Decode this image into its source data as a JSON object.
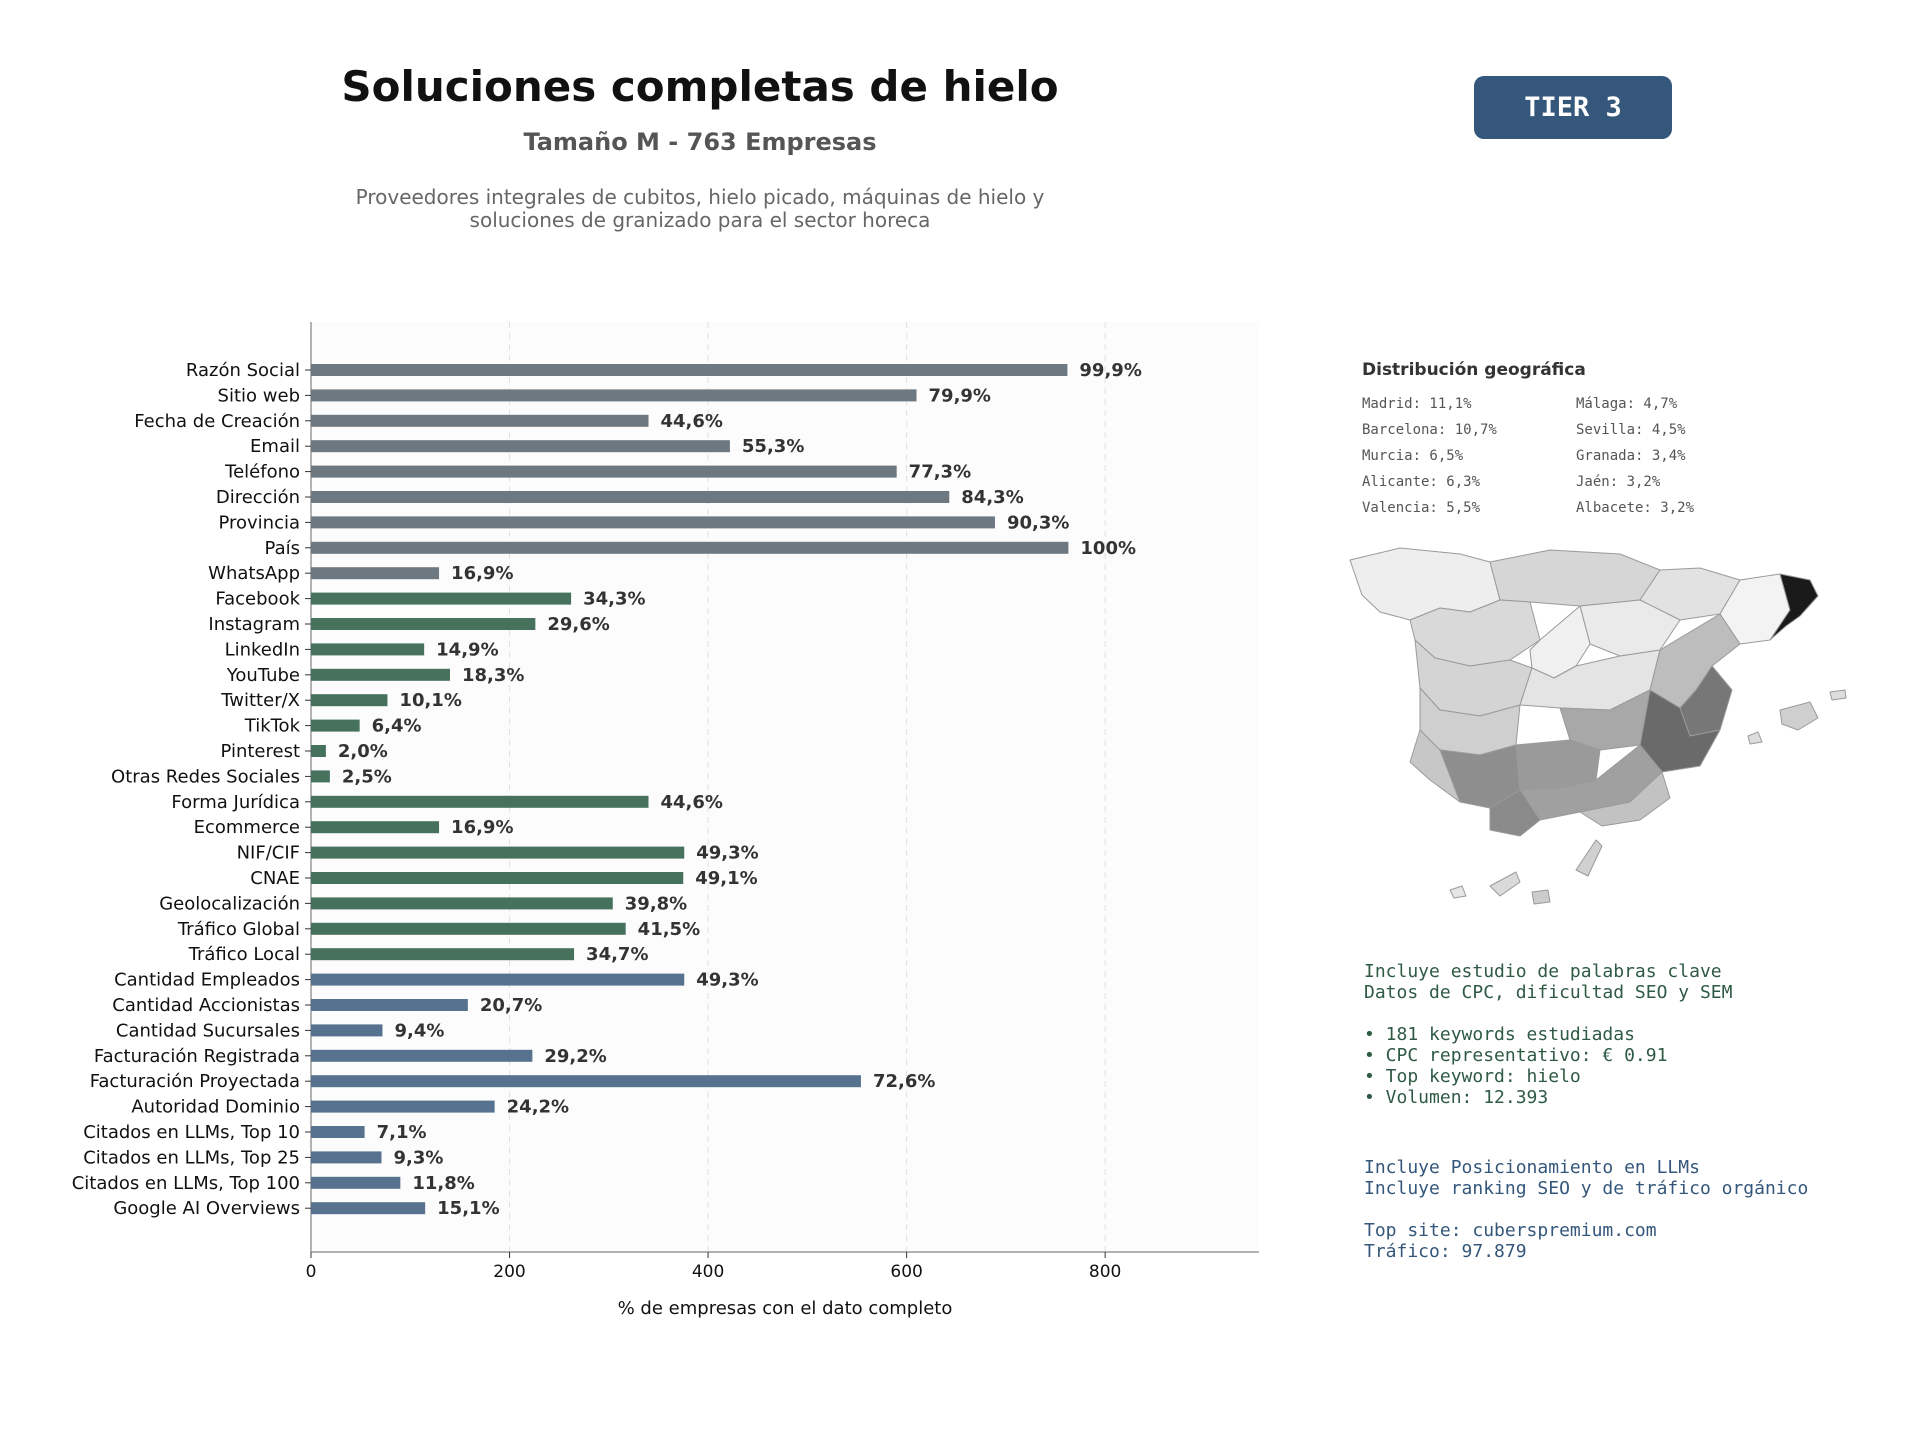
{
  "header": {
    "title": "Soluciones completas de hielo",
    "subtitle": "Tamaño M - 763 Empresas",
    "description_lines": [
      "Proveedores integrales de cubitos, hielo picado, máquinas de hielo y",
      "soluciones de granizado para el sector horeca"
    ],
    "badge": "TIER 3"
  },
  "chart_data": {
    "type": "bar",
    "orientation": "horizontal",
    "xlabel": "% de empresas con el dato completo",
    "xlim": [
      0,
      955
    ],
    "xticks": [
      0,
      200,
      400,
      600,
      800
    ],
    "grid": "vertical dashed",
    "colors": {
      "basic": "#6e7880",
      "social": "#45715d",
      "business": "#56728f"
    },
    "categories": [
      "Razón Social",
      "Sitio web",
      "Fecha de Creación",
      "Email",
      "Teléfono",
      "Dirección",
      "Provincia",
      "País",
      "WhatsApp",
      "Facebook",
      "Instagram",
      "LinkedIn",
      "YouTube",
      "Twitter/X",
      "TikTok",
      "Pinterest",
      "Otras Redes Sociales",
      "Forma Jurídica",
      "Ecommerce",
      "NIF/CIF",
      "CNAE",
      "Geolocalización",
      "Tráfico Global",
      "Tráfico Local",
      "Cantidad Empleados",
      "Cantidad Accionistas",
      "Cantidad Sucursales",
      "Facturación Registrada",
      "Facturación Proyectada",
      "Autoridad Dominio",
      "Citados en LLMs, Top 10",
      "Citados en LLMs, Top 25",
      "Citados en LLMs, Top 100",
      "Google AI Overviews"
    ],
    "values": [
      762,
      610,
      340,
      422,
      590,
      643,
      689,
      763,
      129,
      262,
      226,
      114,
      140,
      77,
      49,
      15,
      19,
      340,
      129,
      376,
      375,
      304,
      317,
      265,
      376,
      158,
      72,
      223,
      554,
      185,
      54,
      71,
      90,
      115
    ],
    "labels": [
      "99,9%",
      "79,9%",
      "44,6%",
      "55,3%",
      "77,3%",
      "84,3%",
      "90,3%",
      "100%",
      "16,9%",
      "34,3%",
      "29,6%",
      "14,9%",
      "18,3%",
      "10,1%",
      "6,4%",
      "2,0%",
      "2,5%",
      "44,6%",
      "16,9%",
      "49,3%",
      "49,1%",
      "39,8%",
      "41,5%",
      "34,7%",
      "49,3%",
      "20,7%",
      "9,4%",
      "29,2%",
      "72,6%",
      "24,2%",
      "7,1%",
      "9,3%",
      "11,8%",
      "15,1%"
    ],
    "groups": [
      "basic",
      "basic",
      "basic",
      "basic",
      "basic",
      "basic",
      "basic",
      "basic",
      "basic",
      "social",
      "social",
      "social",
      "social",
      "social",
      "social",
      "social",
      "social",
      "social",
      "social",
      "social",
      "social",
      "social",
      "social",
      "social",
      "business",
      "business",
      "business",
      "business",
      "business",
      "business",
      "business",
      "business",
      "business",
      "business"
    ]
  },
  "geo": {
    "title": "Distribución geográfica",
    "items": [
      "Madrid: 11,1%",
      "Málaga: 4,7%",
      "Barcelona: 10,7%",
      "Sevilla: 4,5%",
      "Murcia: 6,5%",
      "Granada: 3,4%",
      "Alicante: 6,3%",
      "Jaén: 3,2%",
      "Valencia: 5,5%",
      "Albacete: 3,2%"
    ]
  },
  "keywords": {
    "lines": [
      "Incluye estudio de palabras clave",
      "Datos de CPC, dificultad SEO y SEM"
    ],
    "bullets": [
      "• 181 keywords estudiadas",
      "• CPC representativo: € 0.91",
      "• Top keyword: hielo",
      "• Volumen: 12.393"
    ]
  },
  "llm": {
    "lines": [
      "Incluye Posicionamiento en LLMs",
      "Incluye ranking SEO y de tráfico orgánico"
    ],
    "site": "Top site: cuberspremium.com",
    "traffic": "Tráfico: 97.879"
  },
  "colors": {
    "badge": "#34577b",
    "keywords_text": "#2f5a44",
    "llm_text": "#34577b"
  }
}
